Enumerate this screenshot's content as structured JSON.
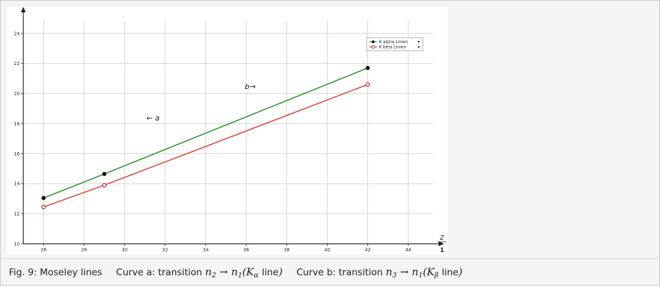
{
  "chart_data": {
    "type": "line",
    "x_ticks": [
      "26",
      "28",
      "30",
      "32",
      "34",
      "36",
      "38",
      "40",
      "42",
      "44"
    ],
    "y_ticks": [
      "10",
      "12",
      "14",
      "16",
      "18",
      "20",
      "22",
      "24"
    ],
    "xlim": [
      25,
      45.5
    ],
    "ylim": [
      10,
      24.4
    ],
    "grid": true,
    "legend_position": "top-right",
    "x_unit_numerator": "Z",
    "x_unit_denominator": "1",
    "series": [
      {
        "name": "K alpha Linien",
        "color": "#3a8f3a",
        "marker": "filled-circle",
        "x": [
          26,
          29,
          42
        ],
        "y": [
          13.05,
          14.65,
          21.7
        ]
      },
      {
        "name": "K beta Linien",
        "color": "#d64a3f",
        "marker": "open-circle",
        "x": [
          26,
          29,
          42
        ],
        "y": [
          12.45,
          13.9,
          20.6
        ]
      }
    ],
    "annotations": [
      {
        "text": "b→",
        "x": 36.2,
        "y": 20.3
      },
      {
        "text": "← a",
        "x": 31.4,
        "y": 18.2
      }
    ]
  },
  "caption": {
    "fig_label": "Fig. 9: Moseley lines",
    "curve_a_prefix": "Curve a: transition",
    "curve_a_alpha": "α",
    "curve_b_prefix": "Curve b: transition",
    "curve_b_beta": "β",
    "line_word": "line"
  }
}
